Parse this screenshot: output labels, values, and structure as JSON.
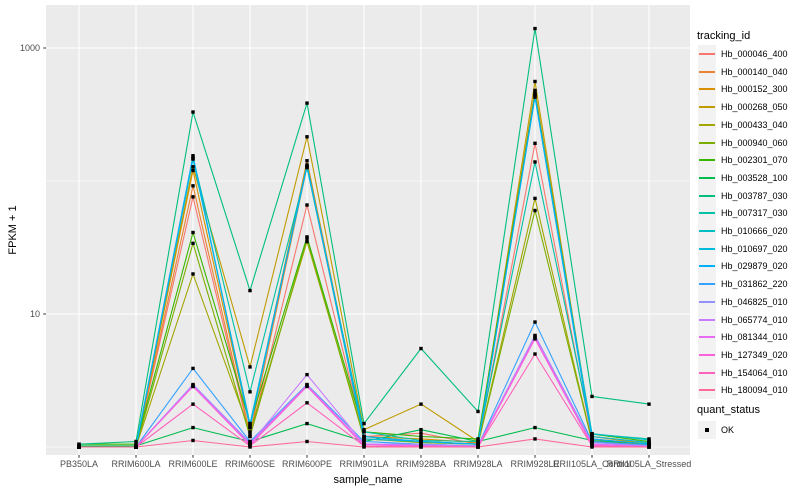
{
  "figure": {
    "y_axis_title": "FPKM + 1",
    "x_axis_title": "sample_name",
    "legend": {
      "tracking_title": "tracking_id",
      "quant_title": "quant_status",
      "quant_items": [
        {
          "label": "OK",
          "marker": "black-square"
        }
      ]
    }
  },
  "colors": {
    "background": "#ffffff",
    "panel_bg": "#ebebeb",
    "grid": "#ffffff",
    "axis_text": "#4d4d4d",
    "title_text": "#000000",
    "tick_mark": "#333333",
    "legend_key_bg": "#f2f2f2",
    "point": "#000000"
  },
  "chart_data": {
    "type": "line",
    "title": "",
    "xlabel": "sample_name",
    "ylabel": "FPKM + 1",
    "y_scale": "log10",
    "y_axis_breaks": [
      10,
      1000
    ],
    "y_minor_breaks": [
      1,
      100
    ],
    "ylim": [
      1,
      1600
    ],
    "grid": true,
    "legend_position": "right",
    "legend_title": "tracking_id",
    "quant_status_legend": {
      "title": "quant_status",
      "items": [
        "OK"
      ]
    },
    "point_marker": {
      "shape": "square",
      "color": "#000000"
    },
    "categories": [
      "PB350LA",
      "RRIM600LA",
      "RRIM600LE",
      "RRIM600SE",
      "RRIM600PE",
      "RRIM901LA",
      "RRIM928BA",
      "RRIM928LA",
      "RRIM928LE",
      "RRII105LA_Control",
      "RRII105LA_Stressed"
    ],
    "series": [
      {
        "name": "Hb_000046_400",
        "color": "#F8766D",
        "values": [
          1.0,
          1.0,
          76,
          1.2,
          66,
          1.2,
          1.27,
          1.05,
          192,
          1.15,
          1.05
        ]
      },
      {
        "name": "Hb_000140_040",
        "color": "#EA8331",
        "values": [
          1.0,
          1.0,
          92,
          1.25,
          128,
          1.15,
          1.1,
          1.05,
          460,
          1.15,
          1.05
        ]
      },
      {
        "name": "Hb_000152_300",
        "color": "#D89000",
        "values": [
          1.0,
          1.0,
          120,
          1.4,
          142,
          1.2,
          1.15,
          1.08,
          480,
          1.2,
          1.08
        ]
      },
      {
        "name": "Hb_000268_050",
        "color": "#C09B00",
        "values": [
          1.0,
          1.0,
          128,
          4.0,
          215,
          1.35,
          2.1,
          1.1,
          560,
          1.2,
          1.05
        ]
      },
      {
        "name": "Hb_000433_040",
        "color": "#A3A500",
        "values": [
          1.0,
          1.0,
          20,
          1.3,
          35,
          1.2,
          1.1,
          1.05,
          74,
          1.1,
          1.05
        ]
      },
      {
        "name": "Hb_000940_060",
        "color": "#7CAE00",
        "values": [
          1.0,
          1.0,
          34,
          1.2,
          37,
          1.15,
          1.08,
          1.05,
          60,
          1.1,
          1.03
        ]
      },
      {
        "name": "Hb_002301_070",
        "color": "#39B600",
        "values": [
          1.05,
          1.05,
          41,
          1.5,
          38,
          1.3,
          1.2,
          1.15,
          450,
          1.25,
          1.1
        ]
      },
      {
        "name": "Hb_003528_100",
        "color": "#00BB4E",
        "values": [
          1.02,
          1.02,
          1.4,
          1.1,
          1.5,
          1.1,
          1.35,
          1.1,
          1.4,
          1.12,
          1.06
        ]
      },
      {
        "name": "Hb_003787_030",
        "color": "#00BF7D",
        "values": [
          1.05,
          1.1,
          330,
          15,
          385,
          1.5,
          5.5,
          1.85,
          1400,
          2.4,
          2.1
        ]
      },
      {
        "name": "Hb_007317_030",
        "color": "#00C1A3",
        "values": [
          1.0,
          1.0,
          150,
          2.6,
          126,
          1.3,
          1.12,
          1.1,
          139,
          1.25,
          1.15
        ]
      },
      {
        "name": "Hb_010666_020",
        "color": "#00BFC4",
        "values": [
          1.0,
          1.0,
          146,
          1.5,
          128,
          1.2,
          1.1,
          1.05,
          440,
          1.26,
          1.13
        ]
      },
      {
        "name": "Hb_010697_020",
        "color": "#00BBDA",
        "values": [
          1.0,
          1.0,
          148,
          1.45,
          130,
          1.15,
          1.1,
          1.05,
          435,
          1.2,
          1.08
        ]
      },
      {
        "name": "Hb_029879_020",
        "color": "#00B0F6",
        "values": [
          1.0,
          1.0,
          155,
          1.4,
          132,
          1.2,
          1.1,
          1.05,
          427,
          1.15,
          1.05
        ]
      },
      {
        "name": "Hb_031862_220",
        "color": "#35A2FF",
        "values": [
          1.0,
          1.0,
          3.9,
          1.1,
          2.95,
          1.1,
          1.05,
          1.02,
          8.7,
          1.1,
          1.03
        ]
      },
      {
        "name": "Hb_046825_010",
        "color": "#9590FF",
        "values": [
          1.0,
          1.0,
          2.95,
          1.08,
          2.9,
          1.05,
          1.05,
          1.02,
          6.9,
          1.08,
          1.02
        ]
      },
      {
        "name": "Hb_065774_010",
        "color": "#C77CFF",
        "values": [
          1.0,
          1.0,
          2.9,
          1.05,
          3.5,
          1.05,
          1.03,
          1.02,
          6.8,
          1.05,
          1.02
        ]
      },
      {
        "name": "Hb_081344_010",
        "color": "#E76BF3",
        "values": [
          1.0,
          1.0,
          2.88,
          1.05,
          2.92,
          1.05,
          1.02,
          1.0,
          6.6,
          1.05,
          1.0
        ]
      },
      {
        "name": "Hb_127349_020",
        "color": "#FA62DB",
        "values": [
          1.0,
          1.0,
          2.85,
          1.03,
          2.85,
          1.02,
          1.02,
          1.0,
          6.5,
          1.03,
          1.0
        ]
      },
      {
        "name": "Hb_154064_010",
        "color": "#FF62BC",
        "values": [
          1.0,
          1.0,
          2.1,
          1.02,
          2.15,
          1.02,
          1.0,
          1.0,
          5.0,
          1.02,
          1.0
        ]
      },
      {
        "name": "Hb_180094_010",
        "color": "#FF6A98",
        "values": [
          1.0,
          1.0,
          1.12,
          1.0,
          1.1,
          1.0,
          1.0,
          1.0,
          1.15,
          1.0,
          1.0
        ]
      }
    ]
  }
}
